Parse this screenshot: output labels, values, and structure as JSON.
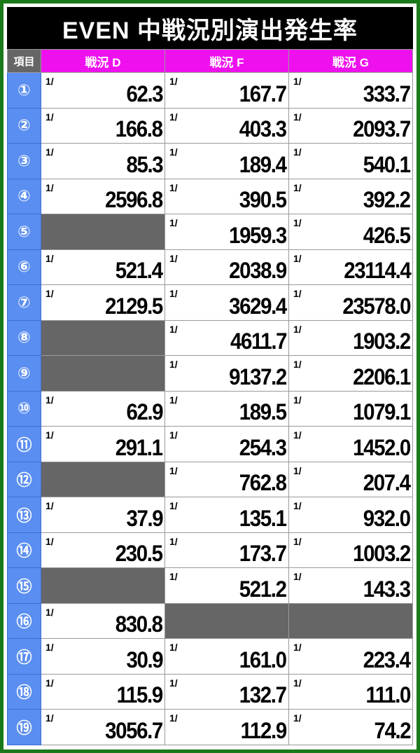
{
  "title": "EVEN 中戦況別演出発生率",
  "headers": {
    "item": "項目",
    "columns": [
      "戦況 D",
      "戦況 F",
      "戦況 G"
    ]
  },
  "prefix": "1/",
  "colors": {
    "frame": "#1a7a1a",
    "title_bg": "#000000",
    "header": "#ee11ee",
    "row_label": "#5a8ef0",
    "empty": "#666666"
  },
  "rows": [
    {
      "label": "①",
      "values": [
        "62.3",
        "167.7",
        "333.7"
      ]
    },
    {
      "label": "②",
      "values": [
        "166.8",
        "403.3",
        "2093.7"
      ]
    },
    {
      "label": "③",
      "values": [
        "85.3",
        "189.4",
        "540.1"
      ]
    },
    {
      "label": "④",
      "values": [
        "2596.8",
        "390.5",
        "392.2"
      ]
    },
    {
      "label": "⑤",
      "values": [
        null,
        "1959.3",
        "426.5"
      ]
    },
    {
      "label": "⑥",
      "values": [
        "521.4",
        "2038.9",
        "23114.4"
      ]
    },
    {
      "label": "⑦",
      "values": [
        "2129.5",
        "3629.4",
        "23578.0"
      ]
    },
    {
      "label": "⑧",
      "values": [
        null,
        "4611.7",
        "1903.2"
      ]
    },
    {
      "label": "⑨",
      "values": [
        null,
        "9137.2",
        "2206.1"
      ]
    },
    {
      "label": "⑩",
      "values": [
        "62.9",
        "189.5",
        "1079.1"
      ]
    },
    {
      "label": "⑪",
      "values": [
        "291.1",
        "254.3",
        "1452.0"
      ]
    },
    {
      "label": "⑫",
      "values": [
        null,
        "762.8",
        "207.4"
      ]
    },
    {
      "label": "⑬",
      "values": [
        "37.9",
        "135.1",
        "932.0"
      ]
    },
    {
      "label": "⑭",
      "values": [
        "230.5",
        "173.7",
        "1003.2"
      ]
    },
    {
      "label": "⑮",
      "values": [
        null,
        "521.2",
        "143.3"
      ]
    },
    {
      "label": "⑯",
      "values": [
        "830.8",
        null,
        null
      ]
    },
    {
      "label": "⑰",
      "values": [
        "30.9",
        "161.0",
        "223.4"
      ]
    },
    {
      "label": "⑱",
      "values": [
        "115.9",
        "132.7",
        "111.0"
      ]
    },
    {
      "label": "⑲",
      "values": [
        "3056.7",
        "112.9",
        "74.2"
      ]
    }
  ]
}
